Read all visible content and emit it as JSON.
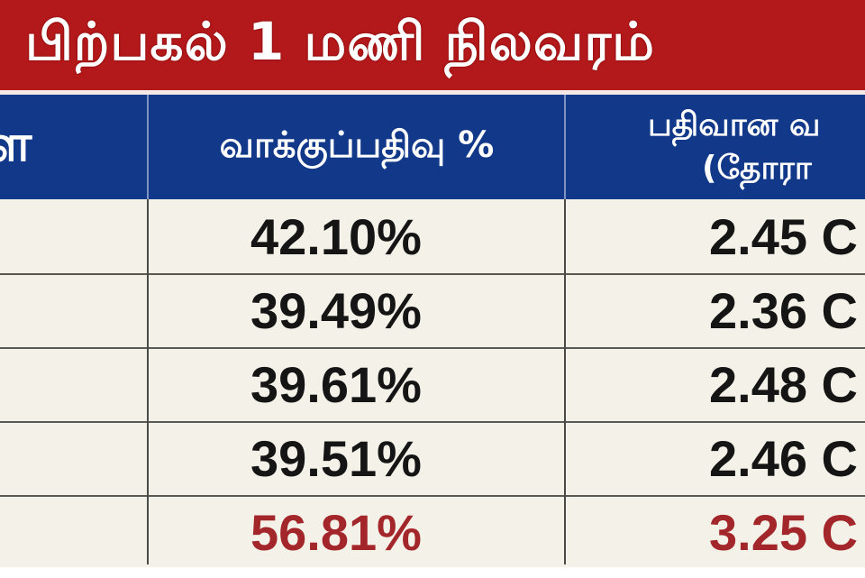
{
  "title": "பிற்பகல் 1 மணி நிலவரம்",
  "header": {
    "col1": "ள",
    "col2": "வாக்குப்பதிவு %",
    "col3_line1": "பதிவான வ",
    "col3_line2": "(தோரா"
  },
  "rows": [
    {
      "percent": "42.10%",
      "votes": "2.45 C",
      "highlight": false
    },
    {
      "percent": "39.49%",
      "votes": "2.36 C",
      "highlight": false
    },
    {
      "percent": "39.61%",
      "votes": "2.48 C",
      "highlight": false
    },
    {
      "percent": "39.51%",
      "votes": "2.46 C",
      "highlight": false
    },
    {
      "percent": "56.81%",
      "votes": "3.25 C",
      "highlight": true
    }
  ],
  "colors": {
    "title_band": "#b3191b",
    "header": "#12388a",
    "cell_bg": "#f4f1e8",
    "highlight_text": "#a3262a"
  }
}
